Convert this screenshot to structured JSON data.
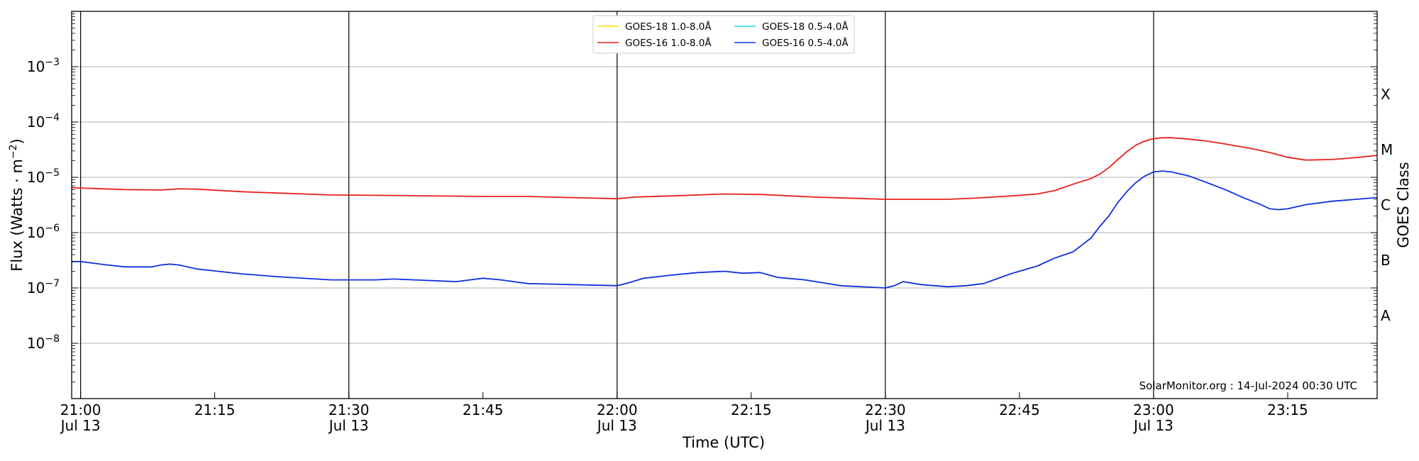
{
  "chart_data": {
    "type": "line",
    "xlabel": "Time (UTC)",
    "ylabel_main": "Flux (Watts · m",
    "ylabel_sup": "−2",
    "ylabel_close": ")",
    "y2label": "GOES Class",
    "credit": "SolarMonitor.org : 14-Jul-2024 00:30 UTC",
    "scale": "log",
    "ylim_exp": [
      -9,
      -2
    ],
    "xlim_min": [
      -1,
      145
    ],
    "grid": "horizontal",
    "legend_position": "top-center",
    "y_ticks": [
      {
        "base": "10",
        "exp": "−3",
        "value": -3
      },
      {
        "base": "10",
        "exp": "−4",
        "value": -4
      },
      {
        "base": "10",
        "exp": "−5",
        "value": -5
      },
      {
        "base": "10",
        "exp": "−6",
        "value": -6
      },
      {
        "base": "10",
        "exp": "−7",
        "value": -7
      },
      {
        "base": "10",
        "exp": "−8",
        "value": -8
      }
    ],
    "x_ticks": [
      {
        "time": "21:00",
        "date": "Jul 13",
        "min": 0
      },
      {
        "time": "21:15",
        "date": "",
        "min": 15
      },
      {
        "time": "21:30",
        "date": "Jul 13",
        "min": 30
      },
      {
        "time": "21:45",
        "date": "",
        "min": 45
      },
      {
        "time": "22:00",
        "date": "Jul 13",
        "min": 60
      },
      {
        "time": "22:15",
        "date": "",
        "min": 75
      },
      {
        "time": "22:30",
        "date": "Jul 13",
        "min": 90
      },
      {
        "time": "22:45",
        "date": "",
        "min": 105
      },
      {
        "time": "23:00",
        "date": "Jul 13",
        "min": 120
      },
      {
        "time": "23:15",
        "date": "",
        "min": 135
      }
    ],
    "vlines_min": [
      0,
      30,
      60,
      90,
      120
    ],
    "goes_classes": [
      {
        "label": "X",
        "value": -3.5
      },
      {
        "label": "M",
        "value": -4.5
      },
      {
        "label": "C",
        "value": -5.5
      },
      {
        "label": "B",
        "value": -6.5
      },
      {
        "label": "A",
        "value": -7.5
      }
    ],
    "legend": [
      {
        "name": "GOES-18 1.0-8.0Å",
        "color": "#ffd700"
      },
      {
        "name": "GOES-16 1.0-8.0Å",
        "color": "#e8201a"
      },
      {
        "name": "GOES-18 0.5-4.0Å",
        "color": "#19e0f0"
      },
      {
        "name": "GOES-16 0.5-4.0Å",
        "color": "#1030e0"
      }
    ],
    "series": [
      {
        "name": "GOES-16 1.0-8.0Å",
        "color": "#e8201a",
        "x_min": [
          -1,
          0,
          5,
          9,
          11,
          13,
          18,
          22,
          28,
          35,
          45,
          50,
          60,
          62,
          66,
          72,
          76,
          82,
          88,
          90,
          97,
          100,
          104,
          107,
          109,
          111,
          113,
          114,
          115,
          116,
          117,
          118,
          119,
          120,
          121,
          122,
          124,
          126,
          128,
          131,
          133,
          135,
          137,
          140,
          143,
          145
        ],
        "y": [
          6.5e-06,
          6.4e-06,
          6e-06,
          5.9e-06,
          6.2e-06,
          6.1e-06,
          5.5e-06,
          5.2e-06,
          4.8e-06,
          4.7e-06,
          4.5e-06,
          4.5e-06,
          4.1e-06,
          4.4e-06,
          4.6e-06,
          5e-06,
          4.9e-06,
          4.4e-06,
          4.1e-06,
          4e-06,
          4e-06,
          4.2e-06,
          4.6e-06,
          5e-06,
          5.8e-06,
          7.5e-06,
          9.5e-06,
          1.15e-05,
          1.5e-05,
          2.1e-05,
          2.9e-05,
          3.8e-05,
          4.5e-05,
          5e-05,
          5.2e-05,
          5.2e-05,
          4.9e-05,
          4.5e-05,
          4e-05,
          3.3e-05,
          2.8e-05,
          2.3e-05,
          2.05e-05,
          2.1e-05,
          2.3e-05,
          2.5e-05
        ]
      },
      {
        "name": "GOES-16 0.5-4.0Å",
        "color": "#1030e0",
        "x_min": [
          -1,
          0,
          3,
          5,
          8,
          9,
          10,
          11,
          13,
          18,
          22,
          28,
          33,
          35,
          42,
          45,
          47,
          50,
          55,
          60,
          61,
          63,
          66,
          69,
          72,
          74,
          76,
          78,
          81,
          85,
          90,
          91,
          92,
          94,
          97,
          99,
          101,
          104,
          107,
          109,
          111,
          112,
          113,
          114,
          115,
          116,
          117,
          118,
          119,
          120,
          121,
          122,
          124,
          126,
          128,
          130,
          132,
          133,
          134,
          135,
          137,
          140,
          145
        ],
        "y": [
          3e-07,
          3e-07,
          2.6e-07,
          2.4e-07,
          2.4e-07,
          2.6e-07,
          2.7e-07,
          2.6e-07,
          2.2e-07,
          1.8e-07,
          1.6e-07,
          1.4e-07,
          1.4e-07,
          1.45e-07,
          1.3e-07,
          1.5e-07,
          1.4e-07,
          1.2e-07,
          1.15e-07,
          1.1e-07,
          1.2e-07,
          1.5e-07,
          1.7e-07,
          1.9e-07,
          2e-07,
          1.85e-07,
          1.9e-07,
          1.55e-07,
          1.4e-07,
          1.1e-07,
          1e-07,
          1.1e-07,
          1.3e-07,
          1.15e-07,
          1.05e-07,
          1.1e-07,
          1.2e-07,
          1.8e-07,
          2.5e-07,
          3.5e-07,
          4.5e-07,
          6e-07,
          8e-07,
          1.3e-06,
          2e-06,
          3.5e-06,
          5.5e-06,
          8e-06,
          1.05e-05,
          1.25e-05,
          1.3e-05,
          1.25e-05,
          1.05e-05,
          8e-06,
          6e-06,
          4.3e-06,
          3.2e-06,
          2.7e-06,
          2.6e-06,
          2.7e-06,
          3.2e-06,
          3.7e-06,
          4.3e-06
        ]
      }
    ]
  }
}
